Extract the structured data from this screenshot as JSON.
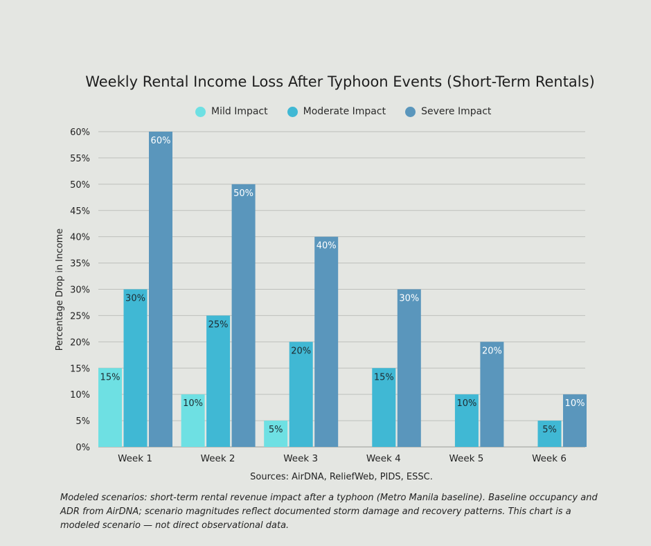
{
  "chart_data": {
    "type": "bar",
    "title": "Weekly Rental Income Loss After Typhoon Events (Short-Term Rentals)",
    "xlabel": "",
    "ylabel": "Percentage Drop in Income",
    "ylim": [
      0,
      60
    ],
    "yticks": [
      "0%",
      "5%",
      "10%",
      "15%",
      "20%",
      "25%",
      "30%",
      "35%",
      "40%",
      "45%",
      "50%",
      "55%",
      "60%"
    ],
    "grid": true,
    "legend_placement": "top",
    "categories": [
      "Week 1",
      "Week 2",
      "Week 3",
      "Week 4",
      "Week 5",
      "Week 6"
    ],
    "series": [
      {
        "name": "Mild Impact",
        "color": "#6ee0e3",
        "values": [
          15,
          10,
          5,
          0,
          0,
          0
        ]
      },
      {
        "name": "Moderate Impact",
        "color": "#40b8d4",
        "values": [
          30,
          25,
          20,
          15,
          10,
          5
        ]
      },
      {
        "name": "Severe Impact",
        "color": "#5a96bc",
        "values": [
          60,
          50,
          40,
          30,
          20,
          10
        ]
      }
    ],
    "sources": "Sources: AirDNA, ReliefWeb, PIDS, ESSC.",
    "note": "Modeled scenarios: short-term rental revenue impact after a typhoon (Metro Manila baseline). Baseline occupancy and ADR from AirDNA; scenario magnitudes reflect documented storm damage and recovery patterns. This chart is a modeled scenario — not direct observational data."
  }
}
